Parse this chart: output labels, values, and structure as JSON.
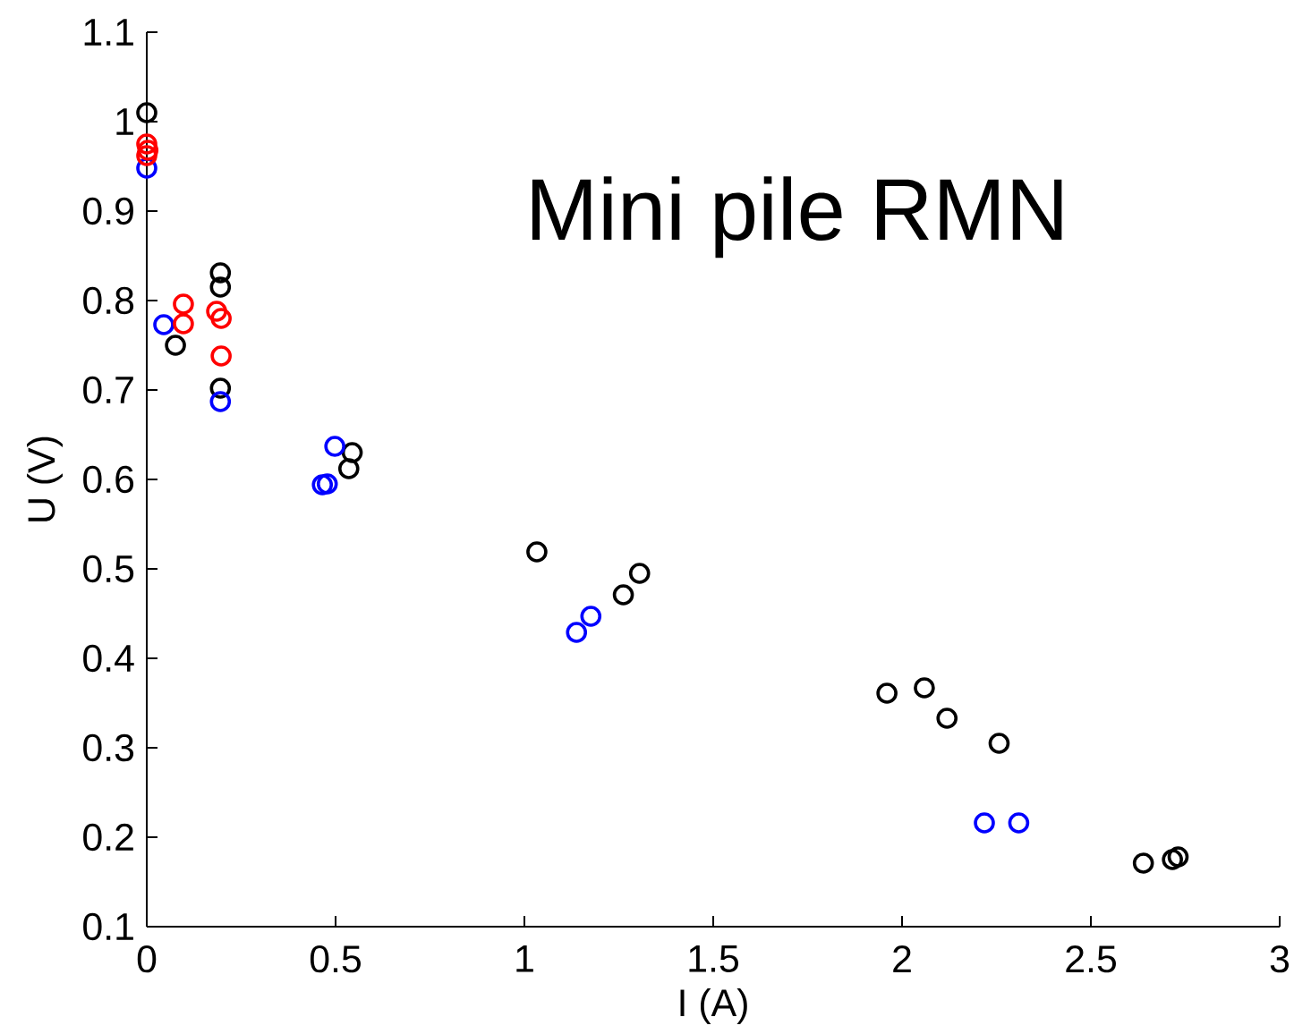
{
  "chart_data": {
    "type": "scatter",
    "title": "Mini pile RMN",
    "xlabel": "I (A)",
    "ylabel": "U (V)",
    "xlim": [
      0,
      3
    ],
    "ylim": [
      0.1,
      1.1
    ],
    "xticks": [
      0,
      0.5,
      1,
      1.5,
      2,
      2.5,
      3
    ],
    "yticks": [
      0.1,
      0.2,
      0.3,
      0.4,
      0.5,
      0.6,
      0.7,
      0.8,
      0.9,
      1,
      1.1
    ],
    "marker": "circle",
    "series": [
      {
        "color": "#000000",
        "x": [
          0,
          0.076,
          0.195,
          0.195,
          0.195,
          0.544,
          0.535,
          1.033,
          1.262,
          1.305,
          1.96,
          2.059,
          2.119,
          2.257,
          2.639,
          2.716,
          2.731
        ],
        "values": [
          1.01,
          0.75,
          0.831,
          0.815,
          0.702,
          0.63,
          0.612,
          0.519,
          0.471,
          0.495,
          0.361,
          0.367,
          0.333,
          0.305,
          0.171,
          0.175,
          0.178
        ]
      },
      {
        "color": "#0000ff",
        "x": [
          0,
          0.045,
          0.195,
          0.498,
          0.465,
          0.478,
          1.138,
          1.176,
          2.218,
          2.309
        ],
        "values": [
          0.948,
          0.773,
          0.687,
          0.637,
          0.594,
          0.595,
          0.429,
          0.447,
          0.216,
          0.216
        ]
      },
      {
        "color": "#ff0000",
        "x": [
          0,
          0.003,
          0,
          0.097,
          0.097,
          0.185,
          0.197,
          0.197
        ],
        "values": [
          0.975,
          0.968,
          0.962,
          0.796,
          0.774,
          0.788,
          0.78,
          0.738
        ]
      }
    ]
  }
}
